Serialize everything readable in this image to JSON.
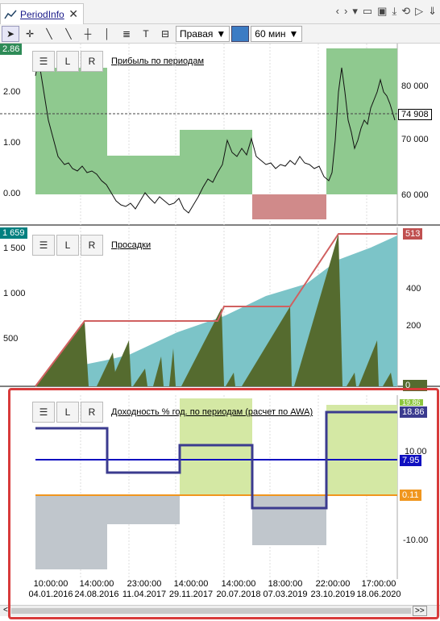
{
  "window": {
    "tab_label": "PeriodInfo",
    "close_glyph": "✕"
  },
  "toolbar": {
    "tools": [
      "cursor-icon",
      "crosshair-icon",
      "line-icon",
      "ray-icon",
      "horizontal-line-icon",
      "vertical-line-icon",
      "fibonacci-icon",
      "text-icon",
      "label-icon"
    ],
    "tool_glyphs": [
      "➤",
      "✛",
      "╲",
      "╲",
      "┼",
      "│",
      "≣",
      "T",
      "⊟"
    ],
    "axis_select": "Правая",
    "interval_select": "60 мин",
    "color": "#3c7cc4"
  },
  "panes": [
    {
      "title": "Прибыль по периодам",
      "left_ticks": [
        "2.00",
        "1.00",
        "0.00"
      ],
      "right_ticks": [
        "80 000",
        "70 000",
        "60 000"
      ],
      "left_badge": "2.86",
      "right_badge": "74 908"
    },
    {
      "title": "Просадки",
      "left_ticks": [
        "1 500",
        "1 000",
        "500"
      ],
      "right_ticks": [
        "400",
        "200"
      ],
      "left_badge": "1 659",
      "right_badge_top": "513",
      "right_badge_bottom": "0"
    },
    {
      "title": "Доходность % год. по периодам (расчет по AWA)",
      "right_ticks": [
        "10.00",
        "-10.00"
      ],
      "badge_max": "18.86",
      "badge_avg": "7.95",
      "badge_min": "0.11",
      "badge_top_cut": "19.86"
    }
  ],
  "legend_buttons": {
    "list_glyph": "☰",
    "l": "L",
    "r": "R"
  },
  "x_axis": [
    {
      "time": "10:00:00",
      "date": "04.01.2016"
    },
    {
      "time": "14:00:00",
      "date": "24.08.2016"
    },
    {
      "time": "23:00:00",
      "date": "11.04.2017"
    },
    {
      "time": "14:00:00",
      "date": "29.11.2017"
    },
    {
      "time": "14:00:00",
      "date": "20.07.2018"
    },
    {
      "time": "18:00:00",
      "date": "07.03.2019"
    },
    {
      "time": "22:00:00",
      "date": "23.10.2019"
    },
    {
      "time": "17:00:00",
      "date": "18.06.2020"
    }
  ],
  "scroll": {
    "left": "<",
    "right": ">>"
  },
  "colors": {
    "profit": "#8fc98f",
    "loss": "#d08a8a",
    "drawdown": "#556b2f",
    "drawdown_fill": "#7cc4c8",
    "yield_pos": "#d4e8a4",
    "yield_neg": "#c0c6cc",
    "yield_line": "#3b3b8f",
    "avg_line": "#1010c0",
    "min_line": "#f0961e"
  }
}
